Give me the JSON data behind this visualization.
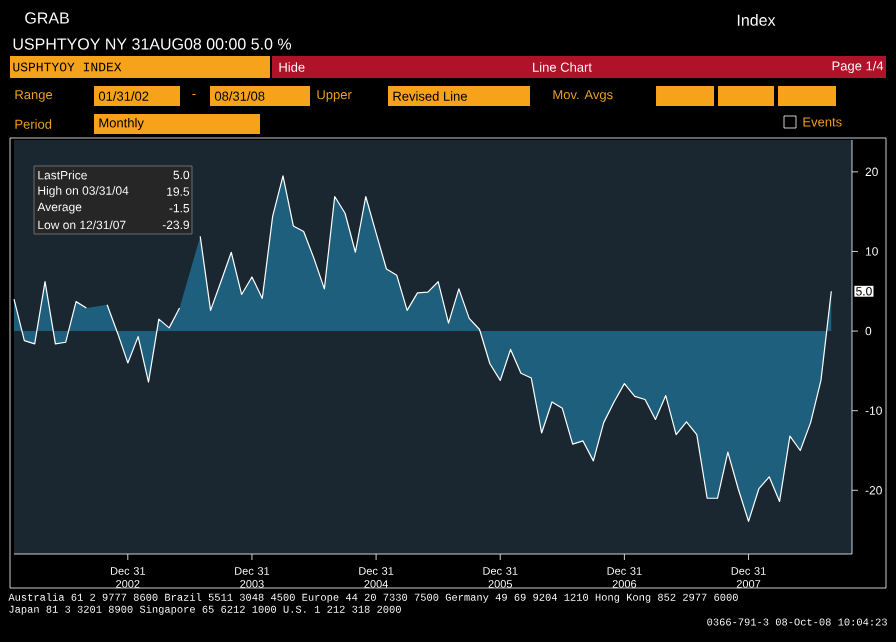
{
  "chart_data": {
    "type": "area",
    "title": "USPHTYOY INDEX",
    "subtitle": "USPHTYOY NY 31AUG08 00:00 5.0 %",
    "x": [
      "2002-01",
      "2002-02",
      "2002-03",
      "2002-04",
      "2002-05",
      "2002-06",
      "2002-07",
      "2002-08",
      "2002-09",
      "2002-10",
      "2002-11",
      "2002-12",
      "2003-01",
      "2003-02",
      "2003-03",
      "2003-04",
      "2003-05",
      "2003-06",
      "2003-07",
      "2003-08",
      "2003-09",
      "2003-10",
      "2003-11",
      "2003-12",
      "2004-01",
      "2004-02",
      "2004-03",
      "2004-04",
      "2004-05",
      "2004-06",
      "2004-07",
      "2004-08",
      "2004-09",
      "2004-10",
      "2004-11",
      "2004-12",
      "2005-01",
      "2005-02",
      "2005-03",
      "2005-04",
      "2005-05",
      "2005-06",
      "2005-07",
      "2005-08",
      "2005-09",
      "2005-10",
      "2005-11",
      "2005-12",
      "2006-01",
      "2006-02",
      "2006-03",
      "2006-04",
      "2006-05",
      "2006-06",
      "2006-07",
      "2006-08",
      "2006-09",
      "2006-10",
      "2006-11",
      "2006-12",
      "2007-01",
      "2007-02",
      "2007-03",
      "2007-04",
      "2007-05",
      "2007-06",
      "2007-07",
      "2007-08",
      "2007-09",
      "2007-10",
      "2007-11",
      "2007-12",
      "2008-01",
      "2008-02",
      "2008-03",
      "2008-04",
      "2008-05",
      "2008-06",
      "2008-07",
      "2008-08"
    ],
    "series": [
      {
        "color": "#1d5f7c",
        "values": [
          4.0,
          -1.2,
          -1.6,
          6.2,
          -1.6,
          -1.4,
          3.7,
          2.9,
          null,
          3.3,
          -0.2,
          -4.0,
          -0.7,
          -6.4,
          1.5,
          0.4,
          2.9,
          null,
          11.9,
          2.6,
          6.2,
          9.9,
          4.6,
          6.8,
          4.1,
          14.4,
          19.5,
          13.2,
          12.5,
          9.1,
          5.3,
          16.9,
          14.8,
          9.9,
          16.9,
          12.3,
          7.8,
          7.0,
          2.6,
          4.8,
          4.9,
          6.2,
          1.0,
          5.3,
          1.6,
          0.2,
          -4.1,
          -6.2,
          -2.3,
          -5.3,
          -5.9,
          -12.8,
          -8.9,
          -9.7,
          -14.2,
          -13.8,
          -16.3,
          -11.5,
          -8.9,
          -6.6,
          -8.2,
          -8.6,
          -11.1,
          -8.1,
          -13.0,
          -11.4,
          -13.0,
          -21.0,
          -21.0,
          -15.2,
          -19.8,
          -23.9,
          -19.8,
          -18.3,
          -21.4,
          -13.2,
          -15.0,
          -11.5,
          -6.2,
          5.0
        ]
      }
    ],
    "xlim": [
      "2002-01",
      "2008-10"
    ],
    "xticks": [
      {
        "value": "2002-12",
        "label": "Dec 31 2002"
      },
      {
        "value": "2003-12",
        "label": "Dec 31 2003"
      },
      {
        "value": "2004-12",
        "label": "Dec 31 2004"
      },
      {
        "value": "2005-12",
        "label": "Dec 31 2005"
      },
      {
        "value": "2006-12",
        "label": "Dec 31 2006"
      },
      {
        "value": "2007-12",
        "label": "Dec 31 2007"
      }
    ],
    "ylim": [
      -28,
      24
    ],
    "yticks": [
      -20,
      -10,
      0,
      10,
      20
    ],
    "grid": false,
    "annotations": [
      "GRAB",
      "Index",
      "Hide",
      "Line Chart",
      "Page 1/4",
      "Range",
      "01/31/02",
      "-",
      "08/31/08",
      "Upper",
      "Revised Line",
      "Mov. Avgs",
      "Period",
      "Monthly",
      "Events",
      "LastPrice",
      "5.0",
      "High on 03/31/04",
      "19.5",
      "Average",
      "-1.5",
      "Low on 12/31/07",
      "-23.9",
      {
        "text": "5.0",
        "x": "2008-08",
        "y": 5.0
      },
      "Australia 61 2 9777 8600 Brazil 5511 3048 4500 Europe 44 20 7330 7500 Germany 49 69 9204 1210 Hong Kong 852 2977 6000",
      "Japan 81 3 3201 8900 Singapore 65 6212 1000 U.S. 1 212 318 2000",
      "0366-791-3 08-Oct-08 10:04:23"
    ]
  }
}
